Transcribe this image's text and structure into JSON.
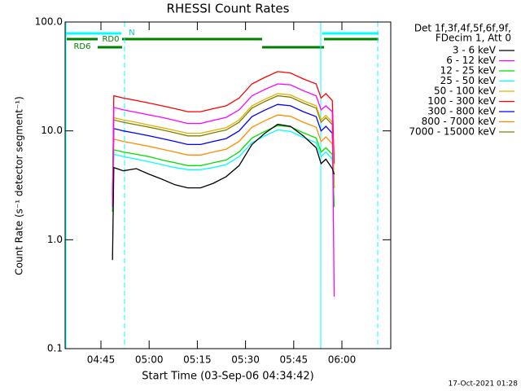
{
  "chart_data": {
    "type": "line",
    "title": "RHESSI Count Rates",
    "xlabel": "Start Time (03-Sep-06 04:34:42)",
    "ylabel": "Count Rate (s⁻¹ detector segment⁻¹)",
    "yscale": "log",
    "xlim": [
      273.85,
      375.2
    ],
    "ylim": [
      0.1,
      100
    ],
    "xticks": [
      {
        "value": 285,
        "label": "04:45"
      },
      {
        "value": 300,
        "label": "05:00"
      },
      {
        "value": 315,
        "label": "05:15"
      },
      {
        "value": 330,
        "label": "05:30"
      },
      {
        "value": 345,
        "label": "05:45"
      },
      {
        "value": 360,
        "label": "06:00"
      }
    ],
    "yticks": [
      0.1,
      {
        "value": 1,
        "label": "1.0"
      },
      {
        "value": 10,
        "label": "10.0"
      },
      {
        "value": 100,
        "label": "100.0"
      }
    ],
    "legend_title": [
      "Det 1f,3f,4f,5f,6f,9f,",
      "FDecim 1, Att 0"
    ],
    "annotations": [
      "N",
      "RD0",
      "RD6"
    ],
    "timestamp": "17-Oct-2021 01:28",
    "x": [
      288.6,
      289,
      292,
      296,
      300,
      304,
      308,
      312,
      316,
      320,
      324,
      328,
      332,
      336,
      340,
      344,
      348,
      352,
      353.5,
      355,
      357,
      357.6
    ],
    "series": [
      {
        "name": "3 - 6 keV",
        "color": "#000000",
        "values": [
          0.65,
          4.6,
          4.3,
          4.5,
          4,
          3.6,
          3.2,
          3,
          3,
          3.3,
          3.8,
          4.8,
          7.5,
          9.5,
          11.5,
          11,
          9,
          7,
          5,
          5.5,
          4.5,
          4
        ]
      },
      {
        "name": "6 - 12 keV",
        "color": "#ff00ff",
        "values": [
          2,
          16.4,
          15.6,
          14.8,
          14,
          13.3,
          12.5,
          11.7,
          11.7,
          12.5,
          13.3,
          15.6,
          21,
          24,
          27,
          26.5,
          23.4,
          21,
          15.6,
          17,
          15,
          0.3
        ]
      },
      {
        "name": "12 - 25 keV",
        "color": "#00e000",
        "values": [
          1.8,
          6.7,
          6.4,
          6.1,
          5.8,
          5.4,
          5.1,
          4.8,
          4.8,
          5.1,
          5.4,
          6.4,
          8.6,
          9.9,
          11.2,
          10.9,
          9.6,
          8.6,
          6.4,
          7,
          6.1,
          2
        ]
      },
      {
        "name": "25 - 50 keV",
        "color": "#00ffff",
        "values": [
          2,
          6.1,
          5.8,
          5.5,
          5.2,
          4.9,
          4.6,
          4.4,
          4.4,
          4.6,
          4.9,
          5.8,
          7.8,
          9,
          10.2,
          9.9,
          8.7,
          7.8,
          5.8,
          6.4,
          5.5,
          2
        ]
      },
      {
        "name": "50 - 100 keV",
        "color": "#e0b000",
        "values": [
          2,
          13.2,
          12.6,
          12,
          11.3,
          10.7,
          10.1,
          9.5,
          9.5,
          10.1,
          10.7,
          12.6,
          17,
          19.5,
          22,
          21.4,
          18.9,
          17,
          12.6,
          13.9,
          12,
          3
        ]
      },
      {
        "name": "100 - 300 keV",
        "color": "#ff0000",
        "values": [
          2.5,
          21,
          20,
          19,
          18,
          17,
          16,
          15,
          15,
          16,
          17,
          20,
          27,
          31,
          35,
          34,
          30,
          27,
          20,
          22,
          19,
          5
        ]
      },
      {
        "name": "300 - 800 keV",
        "color": "#0000ff",
        "values": [
          2.2,
          10.5,
          10,
          9.5,
          9,
          8.5,
          8,
          7.5,
          7.5,
          8,
          8.5,
          10,
          13.5,
          15.5,
          17.5,
          17,
          15,
          13.5,
          10,
          11,
          9.5,
          3
        ]
      },
      {
        "name": "800 - 7000 keV",
        "color": "#ff8c00",
        "values": [
          2,
          8.4,
          8,
          7.6,
          7.2,
          6.8,
          6.4,
          6,
          6,
          6.4,
          6.8,
          8,
          10.8,
          12.4,
          14,
          13.6,
          12,
          10.8,
          8,
          8.8,
          7.6,
          3
        ]
      },
      {
        "name": "7000 - 15000 keV",
        "color": "#808000",
        "values": [
          2,
          12.6,
          12,
          11.4,
          10.8,
          10.2,
          9.6,
          9,
          9,
          9.6,
          10.2,
          12,
          16.2,
          18.6,
          21,
          20.4,
          18,
          16.2,
          12,
          13.2,
          11.4,
          3
        ]
      }
    ]
  }
}
